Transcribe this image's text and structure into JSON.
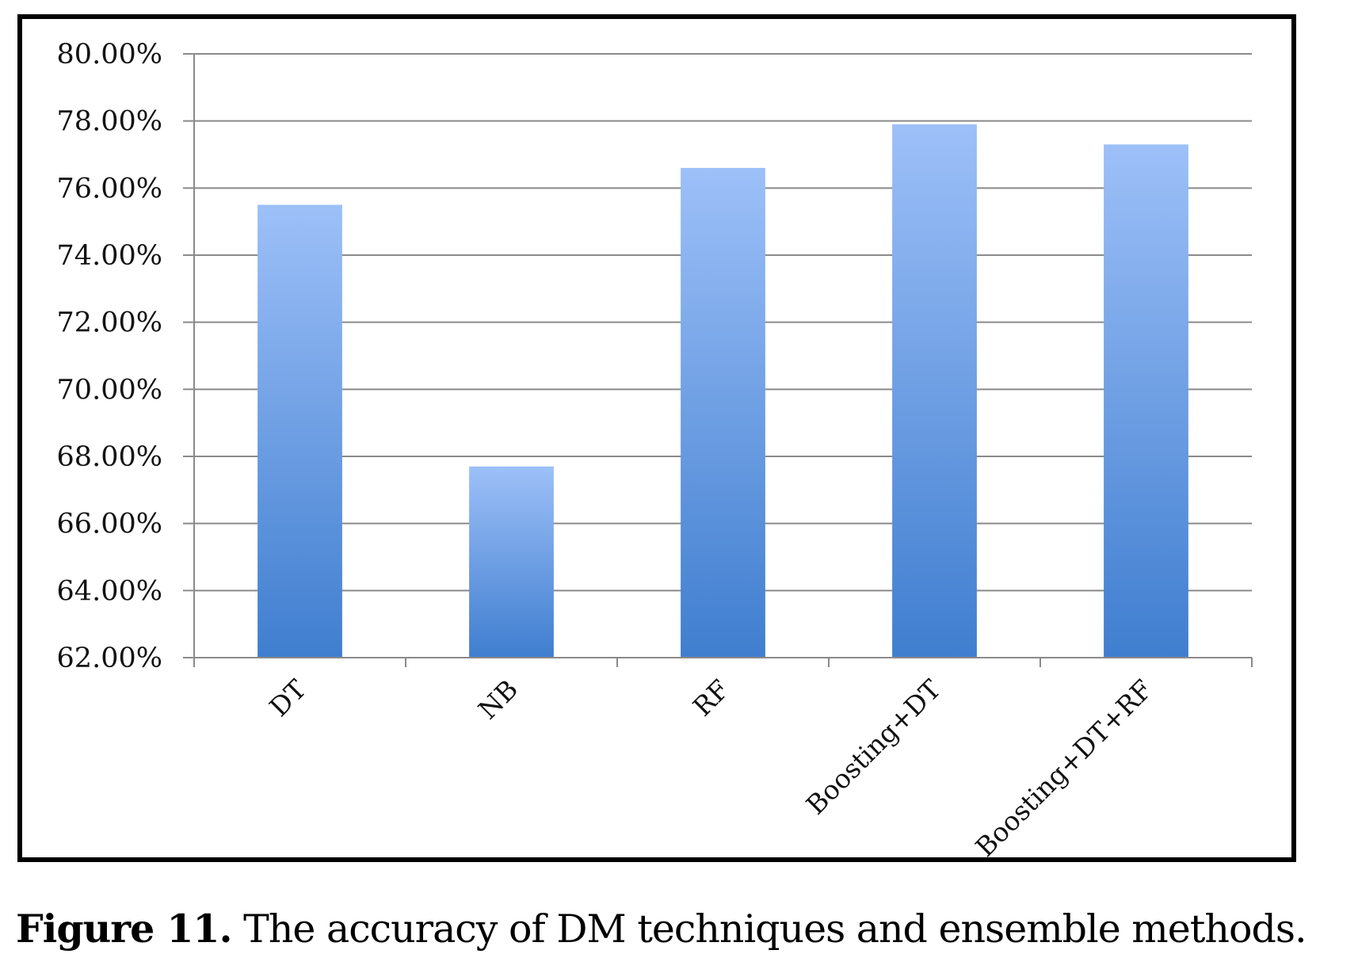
{
  "colors": {
    "bar_top": "#9dc0f8",
    "bar_bottom": "#3f7ecf",
    "grid": "#8a8a8a",
    "frame": "#000000"
  },
  "chart_data": {
    "type": "bar",
    "categories": [
      "DT",
      "NB",
      "RF",
      "Boosting+DT",
      "Boosting+DT+RF"
    ],
    "values": [
      75.5,
      67.7,
      76.6,
      77.9,
      77.3
    ],
    "ylim": [
      62,
      80
    ],
    "yticks": [
      80,
      78,
      76,
      74,
      72,
      70,
      68,
      66,
      64,
      62
    ],
    "ytick_labels": [
      "80.00%",
      "78.00%",
      "76.00%",
      "74.00%",
      "72.00%",
      "70.00%",
      "68.00%",
      "66.00%",
      "64.00%",
      "62.00%"
    ],
    "grid": true,
    "legend": "none",
    "title": "",
    "xlabel": "",
    "ylabel": ""
  },
  "caption": {
    "label": "Figure 11.",
    "text": " The accuracy of DM techniques and ensemble methods."
  }
}
